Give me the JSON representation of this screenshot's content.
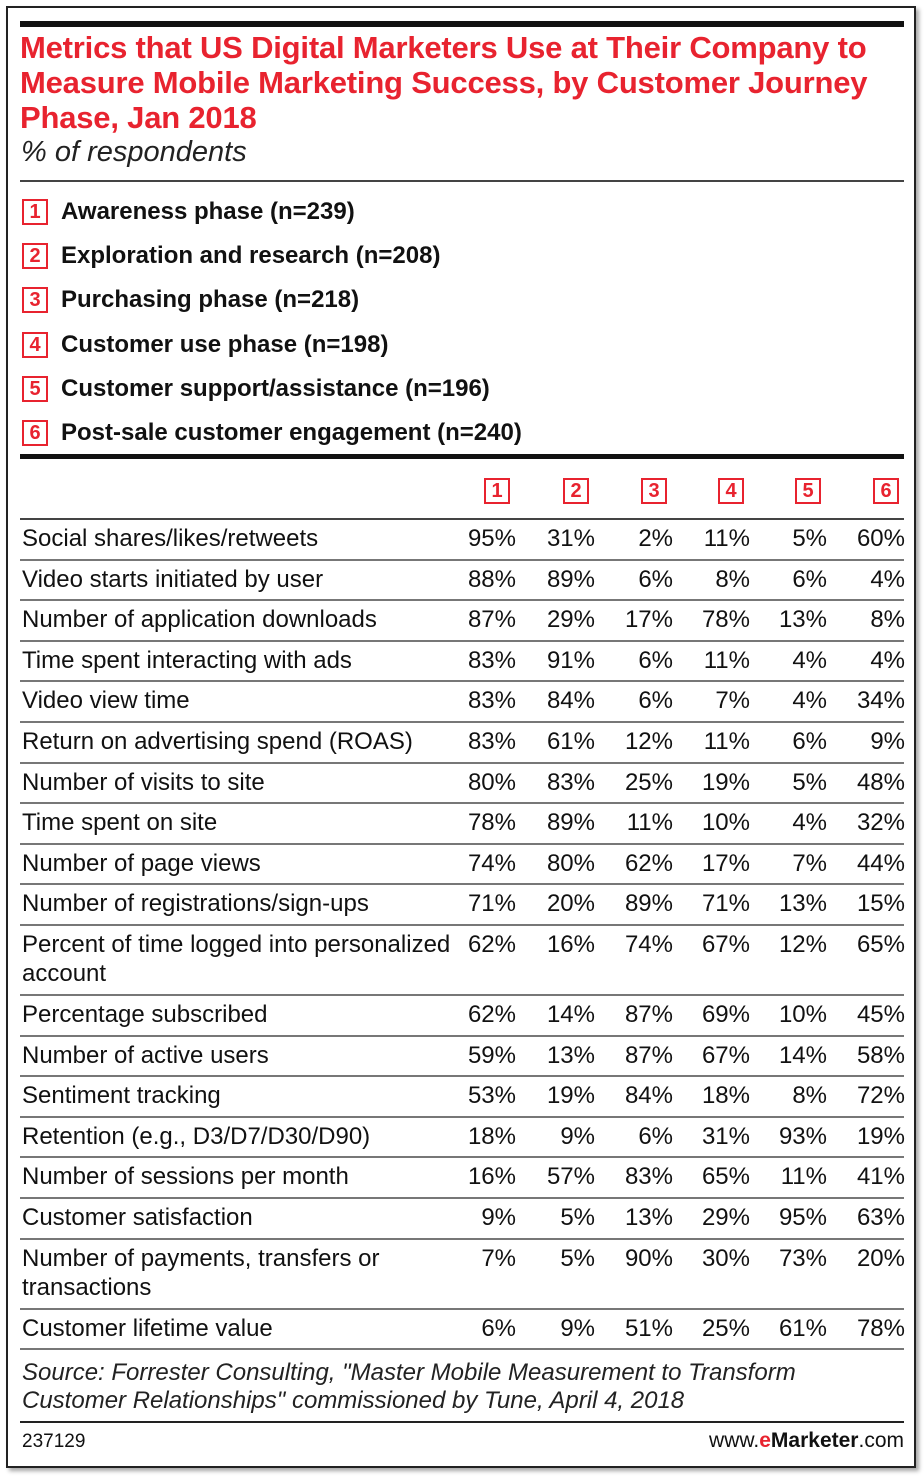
{
  "title": "Metrics that US Digital Marketers Use at Their Company to Measure Mobile Marketing Success, by Customer Journey Phase, Jan 2018",
  "subtitle": "% of respondents",
  "legend": [
    {
      "num": "1",
      "label": "Awareness phase (n=239)"
    },
    {
      "num": "2",
      "label": "Exploration and research (n=208)"
    },
    {
      "num": "3",
      "label": "Purchasing phase (n=218)"
    },
    {
      "num": "4",
      "label": "Customer use phase (n=198)"
    },
    {
      "num": "5",
      "label": "Customer support/assistance (n=196)"
    },
    {
      "num": "6",
      "label": "Post-sale customer engagement (n=240)"
    }
  ],
  "source": "Source: Forrester Consulting, \"Master Mobile Measurement to Transform Customer Relationships\" commissioned by Tune, April 4, 2018",
  "chart_id": "237129",
  "brand": {
    "prefix": "www.",
    "e": "e",
    "name": "Marketer",
    "suffix": ".com"
  },
  "colors": {
    "accent": "#e8232f",
    "text": "#111111"
  },
  "chart_data": {
    "type": "table",
    "title": "Metrics that US Digital Marketers Use at Their Company to Measure Mobile Marketing Success, by Customer Journey Phase, Jan 2018",
    "unit": "%",
    "columns": [
      "1",
      "2",
      "3",
      "4",
      "5",
      "6"
    ],
    "rows": [
      {
        "label": "Social shares/likes/retweets",
        "values": [
          "95%",
          "31%",
          "2%",
          "11%",
          "5%",
          "60%"
        ]
      },
      {
        "label": "Video starts initiated by user",
        "values": [
          "88%",
          "89%",
          "6%",
          "8%",
          "6%",
          "4%"
        ]
      },
      {
        "label": "Number of application downloads",
        "values": [
          "87%",
          "29%",
          "17%",
          "78%",
          "13%",
          "8%"
        ]
      },
      {
        "label": "Time spent interacting with ads",
        "values": [
          "83%",
          "91%",
          "6%",
          "11%",
          "4%",
          "4%"
        ]
      },
      {
        "label": "Video view time",
        "values": [
          "83%",
          "84%",
          "6%",
          "7%",
          "4%",
          "34%"
        ]
      },
      {
        "label": "Return on advertising spend (ROAS)",
        "values": [
          "83%",
          "61%",
          "12%",
          "11%",
          "6%",
          "9%"
        ]
      },
      {
        "label": "Number of visits to site",
        "values": [
          "80%",
          "83%",
          "25%",
          "19%",
          "5%",
          "48%"
        ]
      },
      {
        "label": "Time spent on site",
        "values": [
          "78%",
          "89%",
          "11%",
          "10%",
          "4%",
          "32%"
        ]
      },
      {
        "label": "Number of page views",
        "values": [
          "74%",
          "80%",
          "62%",
          "17%",
          "7%",
          "44%"
        ]
      },
      {
        "label": "Number of registrations/sign-ups",
        "values": [
          "71%",
          "20%",
          "89%",
          "71%",
          "13%",
          "15%"
        ]
      },
      {
        "label": "Percent of time logged into personalized account",
        "values": [
          "62%",
          "16%",
          "74%",
          "67%",
          "12%",
          "65%"
        ]
      },
      {
        "label": "Percentage subscribed",
        "values": [
          "62%",
          "14%",
          "87%",
          "69%",
          "10%",
          "45%"
        ]
      },
      {
        "label": "Number of active users",
        "values": [
          "59%",
          "13%",
          "87%",
          "67%",
          "14%",
          "58%"
        ]
      },
      {
        "label": "Sentiment tracking",
        "values": [
          "53%",
          "19%",
          "84%",
          "18%",
          "8%",
          "72%"
        ]
      },
      {
        "label": "Retention (e.g., D3/D7/D30/D90)",
        "values": [
          "18%",
          "9%",
          "6%",
          "31%",
          "93%",
          "19%"
        ]
      },
      {
        "label": "Number of sessions per month",
        "values": [
          "16%",
          "57%",
          "83%",
          "65%",
          "11%",
          "41%"
        ]
      },
      {
        "label": "Customer satisfaction",
        "values": [
          "9%",
          "5%",
          "13%",
          "29%",
          "95%",
          "63%"
        ]
      },
      {
        "label": "Number of payments, transfers or transactions",
        "values": [
          "7%",
          "5%",
          "90%",
          "30%",
          "73%",
          "20%"
        ]
      },
      {
        "label": "Customer lifetime value",
        "values": [
          "6%",
          "9%",
          "51%",
          "25%",
          "61%",
          "78%"
        ]
      }
    ]
  }
}
